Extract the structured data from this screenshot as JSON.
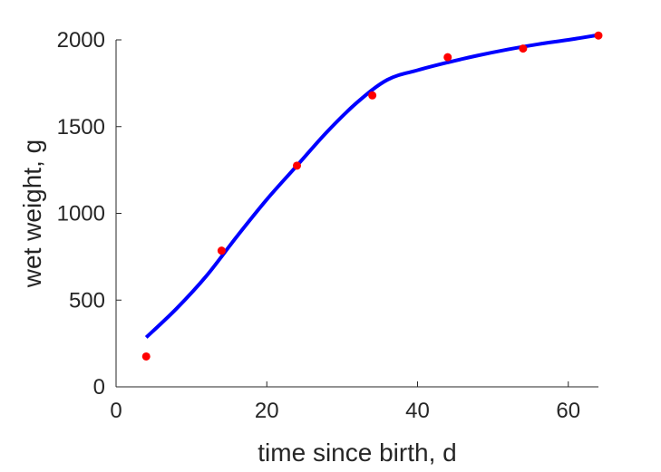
{
  "chart_data": {
    "type": "scatter",
    "xlabel": "time since birth, d",
    "ylabel": "wet weight, g",
    "xlim": [
      0,
      64
    ],
    "ylim": [
      0,
      2000
    ],
    "xticks": [
      0,
      20,
      40,
      60
    ],
    "yticks": [
      0,
      500,
      1000,
      1500,
      2000
    ],
    "grid": false,
    "legend": "none",
    "series": [
      {
        "kind": "points",
        "color": "#ff0000",
        "x": [
          4,
          14,
          24,
          34,
          44,
          54,
          64
        ],
        "y": [
          175,
          785,
          1275,
          1680,
          1900,
          1950,
          2025
        ]
      },
      {
        "kind": "line",
        "color": "#0000ff",
        "x": [
          4,
          8,
          12,
          16,
          20,
          24,
          28,
          32,
          36,
          40,
          44,
          48,
          52,
          56,
          60,
          64
        ],
        "y": [
          285,
          450,
          640,
          865,
          1080,
          1275,
          1470,
          1640,
          1770,
          1825,
          1870,
          1910,
          1945,
          1975,
          2000,
          2028
        ]
      }
    ]
  }
}
